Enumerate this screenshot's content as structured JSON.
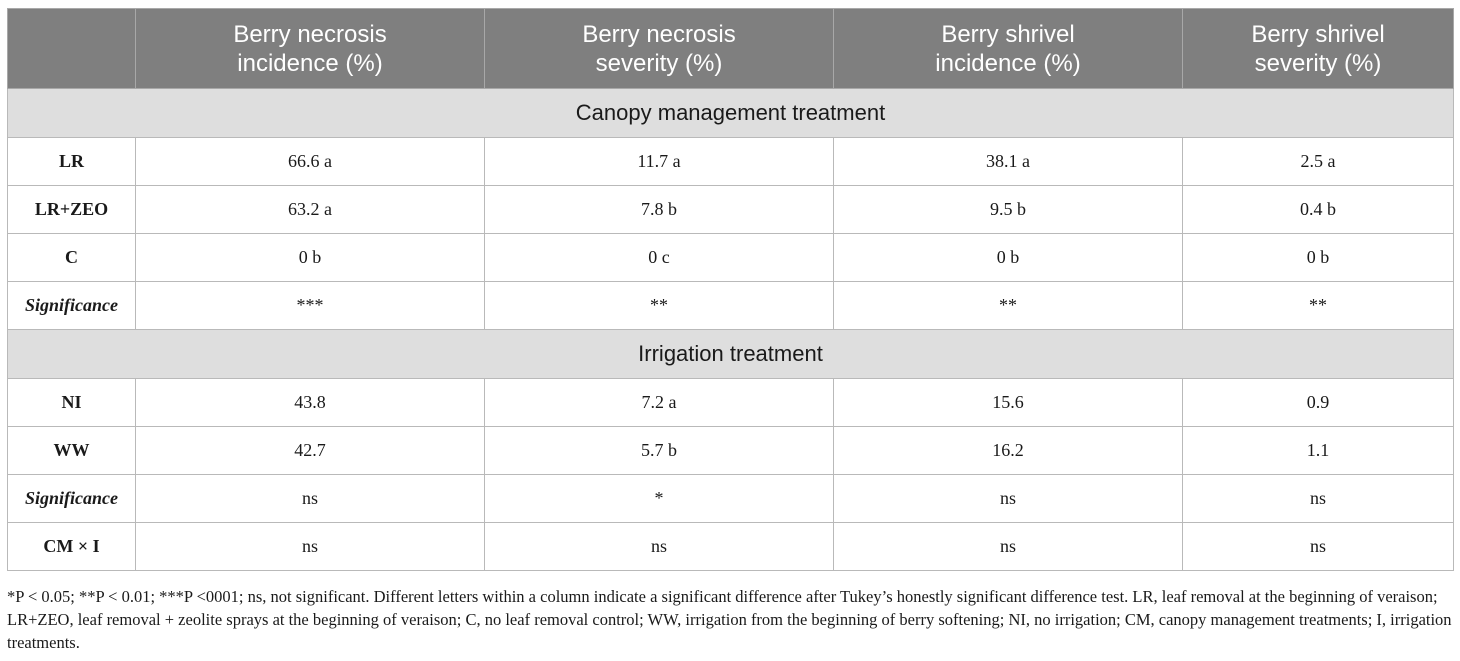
{
  "table": {
    "header": [
      "",
      "Berry necrosis\nincidence (%)",
      "Berry necrosis\nseverity    (%)",
      "Berry shrivel\nincidence (%)",
      "Berry shrivel\nseverity (%)"
    ],
    "sections": [
      {
        "title": "Canopy management treatment",
        "rows": [
          {
            "label": "LR",
            "italic": false,
            "cells": [
              "66.6 a",
              "11.7 a",
              "38.1 a",
              "2.5 a"
            ]
          },
          {
            "label": "LR+ZEO",
            "italic": false,
            "cells": [
              "63.2 a",
              "7.8 b",
              "9.5 b",
              "0.4 b"
            ]
          },
          {
            "label": "C",
            "italic": false,
            "cells": [
              "0 b",
              "0 c",
              "0 b",
              "0 b"
            ]
          },
          {
            "label": "Significance",
            "italic": true,
            "cells": [
              "***",
              "**",
              "**",
              "**"
            ]
          }
        ]
      },
      {
        "title": "Irrigation treatment",
        "rows": [
          {
            "label": "NI",
            "italic": false,
            "cells": [
              "43.8",
              "7.2 a",
              "15.6",
              "0.9"
            ]
          },
          {
            "label": "WW",
            "italic": false,
            "cells": [
              "42.7",
              "5.7 b",
              "16.2",
              "1.1"
            ]
          },
          {
            "label": "Significance",
            "italic": true,
            "cells": [
              "ns",
              "*",
              "ns",
              "ns"
            ]
          },
          {
            "label": "CM × I",
            "italic": false,
            "cells": [
              "ns",
              "ns",
              "ns",
              "ns"
            ]
          }
        ]
      }
    ]
  },
  "footnote": "*P < 0.05; **P < 0.01; ***P <0001; ns, not significant. Different letters within a column indicate a significant difference after Tukey’s honestly significant difference test. LR, leaf removal at the beginning of veraison; LR+ZEO, leaf removal + zeolite sprays at the beginning of veraison; C, no leaf removal control; WW, irrigation from the beginning of berry softening; NI, no irrigation; CM, canopy management treatments; I, irrigation treatments."
}
